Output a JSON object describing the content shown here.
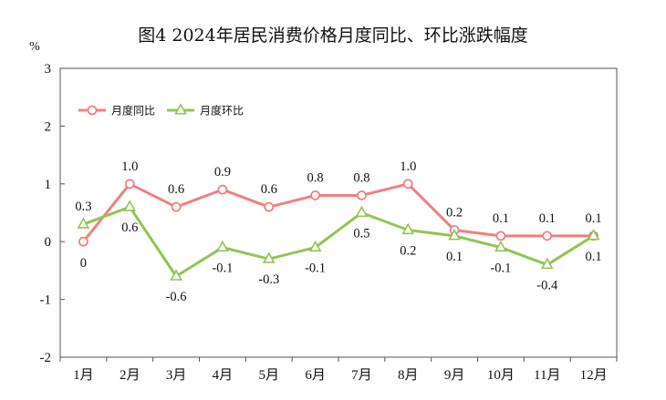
{
  "chart_data": {
    "type": "line",
    "title": "图4  2024年居民消费价格月度同比、环比涨跌幅度",
    "ylabel": "%",
    "xlabel": "",
    "categories": [
      "1月",
      "2月",
      "3月",
      "4月",
      "5月",
      "6月",
      "7月",
      "8月",
      "9月",
      "10月",
      "11月",
      "12月"
    ],
    "ylim": [
      -2,
      3
    ],
    "yticks": [
      3,
      2,
      1,
      0,
      -1,
      -2
    ],
    "grid": false,
    "legend_position": "top-left",
    "series": [
      {
        "name": "月度同比",
        "color": "#F08080",
        "marker": "circle",
        "values": [
          0,
          1.0,
          0.6,
          0.9,
          0.6,
          0.8,
          0.8,
          1.0,
          0.2,
          0.1,
          0.1,
          0.1
        ],
        "labels": [
          "0",
          "1.0",
          "0.6",
          "0.9",
          "0.6",
          "0.8",
          "0.8",
          "1.0",
          "0.2",
          "0.1",
          "0.1",
          "0.1"
        ]
      },
      {
        "name": "月度环比",
        "color": "#92C456",
        "marker": "triangle",
        "values": [
          0.3,
          0.6,
          -0.6,
          -0.1,
          -0.3,
          -0.1,
          0.5,
          0.2,
          0.1,
          -0.1,
          -0.4,
          0.1
        ],
        "labels": [
          "0.3",
          "0.6",
          "-0.6",
          "-0.1",
          "-0.3",
          "-0.1",
          "0.5",
          "0.2",
          "0.1",
          "-0.1",
          "-0.4",
          "0.1"
        ]
      }
    ]
  }
}
